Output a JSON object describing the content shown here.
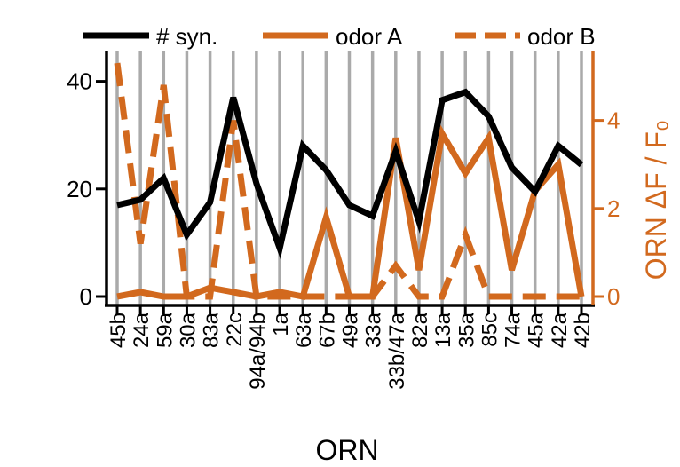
{
  "chart_data": {
    "type": "line",
    "categories": [
      "45b",
      "24a",
      "59a",
      "30a",
      "83a",
      "22c",
      "94a/94b",
      "1a",
      "63a",
      "67b",
      "49a",
      "33a",
      "33b/47a",
      "82a",
      "13a",
      "35a",
      "85c",
      "74a",
      "45a",
      "42a",
      "42b"
    ],
    "xlabel": "ORN",
    "ylabel_left": "",
    "ylabel_right": "ORN ΔF / F₀",
    "ylim_left": [
      0,
      45
    ],
    "ylim_right": [
      0,
      5.5
    ],
    "yticks_left": [
      "0",
      "20",
      "40"
    ],
    "yticks_right": [
      "0",
      "2",
      "4"
    ],
    "legend_position": "top",
    "grid": "vertical category lines",
    "series": [
      {
        "name": "# syn.",
        "axis": "left",
        "style": "solid",
        "color": "#000000",
        "values": [
          17,
          18,
          22,
          11.5,
          17.5,
          37,
          21,
          9,
          28,
          23.5,
          17,
          15,
          27,
          14,
          36.5,
          38,
          33.5,
          24,
          19.5,
          28,
          24.5
        ]
      },
      {
        "name": "odor A",
        "axis": "right",
        "style": "solid",
        "color": "#d2691e",
        "values": [
          0,
          0.1,
          0,
          0,
          0.2,
          0.1,
          0,
          0.1,
          0,
          1.8,
          0,
          0,
          3.6,
          0.6,
          3.7,
          2.8,
          3.6,
          0.6,
          2.4,
          3,
          0
        ]
      },
      {
        "name": "odor B",
        "axis": "right",
        "style": "dashed",
        "color": "#d2691e",
        "values": [
          5.3,
          1.2,
          4.8,
          0,
          0,
          4,
          0,
          0,
          0,
          0,
          0,
          0,
          0.7,
          0,
          0,
          1.4,
          0,
          0,
          0,
          0,
          0
        ]
      }
    ]
  }
}
